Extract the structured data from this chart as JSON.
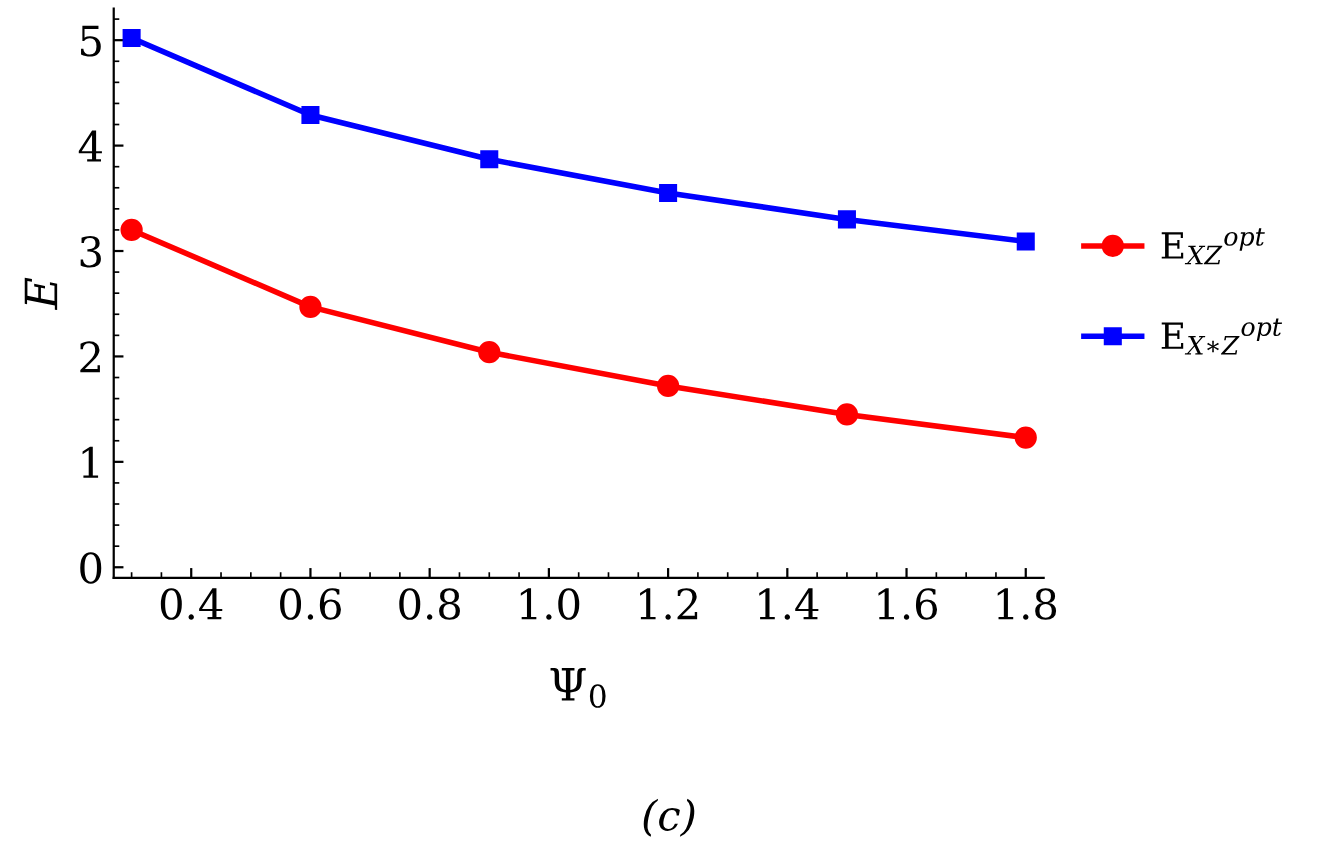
{
  "chart_data": {
    "type": "line",
    "xlabel": "Ψ$_{0}$",
    "ylabel": "E",
    "annotations": [
      "(c)"
    ],
    "x": [
      0.3,
      0.6,
      0.9,
      1.2,
      1.5,
      1.8
    ],
    "series": [
      {
        "name": "E$_{XZ}$$^{opt}$",
        "color": "#ff0000",
        "marker": "circle",
        "values": [
          3.2,
          2.47,
          2.04,
          1.72,
          1.45,
          1.23
        ]
      },
      {
        "name": "E$_{X∗Z}$$^{opt}$",
        "color": "#0000ff",
        "marker": "square",
        "values": [
          5.02,
          4.29,
          3.87,
          3.55,
          3.3,
          3.09
        ]
      }
    ],
    "xlim": [
      0.27,
      1.83
    ],
    "ylim": [
      -0.1,
      5.3
    ],
    "xticks": [
      0.4,
      0.6,
      0.8,
      {
        "value": 1.0,
        "label": "1.0"
      },
      1.2,
      1.4,
      1.6,
      1.8
    ],
    "yticks": [
      0,
      1,
      2,
      3,
      4,
      5
    ],
    "grid": false,
    "legend": "right",
    "line_style": "solid"
  }
}
